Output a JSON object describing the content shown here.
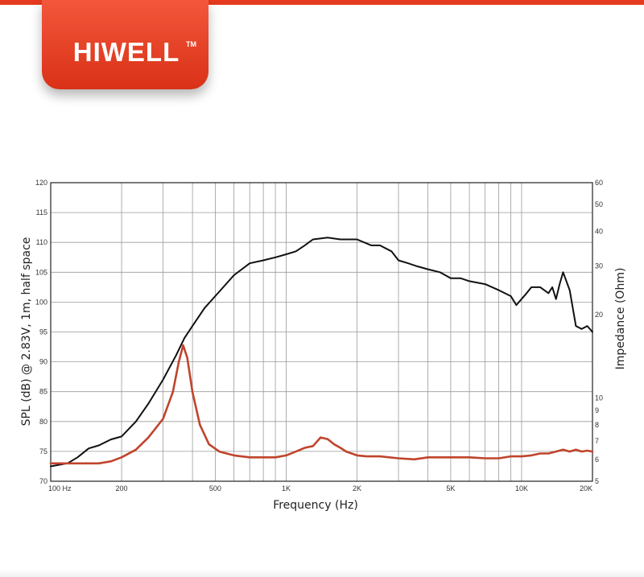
{
  "brand": {
    "name": "HIWELL",
    "trademark": "TM"
  },
  "colors": {
    "brand": "#e53a1d",
    "spl_curve": "#111111",
    "impedance_curve": "#c0442c",
    "grid": "#999999"
  },
  "chart_data": {
    "type": "line",
    "xlabel": "Frequency (Hz)",
    "ylabel": "SPL (dB) @ 2.83V, 1m, half space",
    "y2label": "Impedance (Ohm)",
    "x_scale": "log",
    "xlim": [
      100,
      20000
    ],
    "ylim": [
      70,
      120
    ],
    "y2lim": [
      5,
      60
    ],
    "y2_scale": "log",
    "grid": true,
    "x_ticks": [
      {
        "value": 100,
        "label": "100  Hz"
      },
      {
        "value": 200,
        "label": "200"
      },
      {
        "value": 500,
        "label": "500"
      },
      {
        "value": 1000,
        "label": "1K"
      },
      {
        "value": 2000,
        "label": "2K"
      },
      {
        "value": 5000,
        "label": "5K"
      },
      {
        "value": 10000,
        "label": "10K"
      },
      {
        "value": 20000,
        "label": "20K"
      }
    ],
    "y_ticks": [
      70,
      75,
      80,
      85,
      90,
      95,
      100,
      105,
      110,
      115,
      120
    ],
    "y2_ticks": [
      {
        "value": 5,
        "label": "5"
      },
      {
        "value": 6,
        "label": "6"
      },
      {
        "value": 7,
        "label": "7"
      },
      {
        "value": 8,
        "label": "8"
      },
      {
        "value": 9,
        "label": "9"
      },
      {
        "value": 10,
        "label": "10"
      },
      {
        "value": 20,
        "label": "20"
      },
      {
        "value": 30,
        "label": "30"
      },
      {
        "value": 40,
        "label": "40"
      },
      {
        "value": 50,
        "label": "50"
      },
      {
        "value": 60,
        "label": "60"
      }
    ],
    "series": [
      {
        "axis": "left",
        "color": "#111111",
        "x": [
          100,
          118,
          130,
          145,
          160,
          180,
          200,
          230,
          260,
          300,
          340,
          370,
          400,
          450,
          500,
          600,
          700,
          800,
          900,
          1000,
          1100,
          1200,
          1300,
          1500,
          1700,
          2000,
          2300,
          2500,
          2800,
          3000,
          3300,
          3600,
          4000,
          4500,
          5000,
          5500,
          6000,
          7000,
          8000,
          9000,
          9500,
          10500,
          11000,
          12000,
          13000,
          13500,
          14000,
          14500,
          15000,
          16000,
          17000,
          18000,
          19000,
          20000
        ],
        "y": [
          72.5,
          73,
          74,
          75.5,
          76,
          77,
          77.5,
          80,
          83,
          87,
          91,
          94,
          96,
          99,
          101,
          104.5,
          106.5,
          107,
          107.5,
          108,
          108.5,
          109.5,
          110.5,
          110.8,
          110.5,
          110.5,
          109.5,
          109.5,
          108.5,
          107,
          106.5,
          106,
          105.5,
          105,
          104,
          104,
          103.5,
          103,
          102,
          101,
          99.5,
          101.5,
          102.5,
          102.5,
          101.5,
          102.5,
          100.5,
          103,
          105,
          102,
          96,
          95.5,
          96,
          95
        ]
      },
      {
        "axis": "right",
        "color": "#c0442c",
        "x": [
          100,
          120,
          140,
          160,
          180,
          200,
          230,
          260,
          300,
          330,
          350,
          365,
          380,
          400,
          430,
          470,
          520,
          600,
          700,
          800,
          900,
          1000,
          1100,
          1200,
          1300,
          1400,
          1500,
          1600,
          1700,
          1800,
          2000,
          2200,
          2500,
          3000,
          3500,
          4000,
          5000,
          6000,
          7000,
          8000,
          9000,
          10000,
          11000,
          12000,
          13000,
          14000,
          15000,
          16000,
          17000,
          18000,
          19000,
          20000
        ],
        "y": [
          5.8,
          5.8,
          5.8,
          5.8,
          5.9,
          6.1,
          6.5,
          7.2,
          8.4,
          10.5,
          13.5,
          15.5,
          14,
          10.5,
          8,
          6.8,
          6.4,
          6.2,
          6.1,
          6.1,
          6.1,
          6.2,
          6.4,
          6.6,
          6.7,
          7.2,
          7.1,
          6.8,
          6.6,
          6.4,
          6.2,
          6.15,
          6.15,
          6.05,
          6,
          6.1,
          6.1,
          6.1,
          6.05,
          6.05,
          6.15,
          6.15,
          6.2,
          6.3,
          6.3,
          6.4,
          6.5,
          6.4,
          6.5,
          6.4,
          6.45,
          6.4
        ]
      }
    ]
  }
}
